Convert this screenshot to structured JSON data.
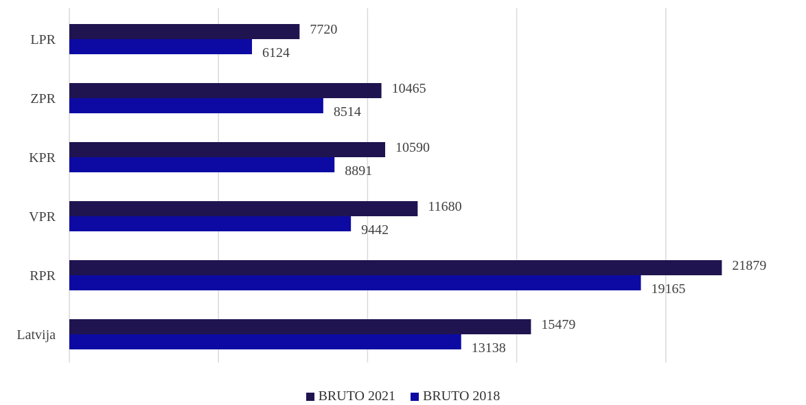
{
  "chart_data": {
    "type": "bar",
    "orientation": "horizontal",
    "categories": [
      "LPR",
      "ZPR",
      "KPR",
      "VPR",
      "RPR",
      "Latvija"
    ],
    "series": [
      {
        "name": "BRUTO 2021",
        "color": "#1f1450",
        "values": [
          7720,
          10465,
          10590,
          11680,
          21879,
          15479
        ]
      },
      {
        "name": "BRUTO 2018",
        "color": "#0d0aa3",
        "values": [
          6124,
          8514,
          8891,
          9442,
          19165,
          13138
        ]
      }
    ],
    "xlim": [
      0,
      25000
    ],
    "grid": true,
    "legend": "bottom",
    "data_labels": true
  }
}
